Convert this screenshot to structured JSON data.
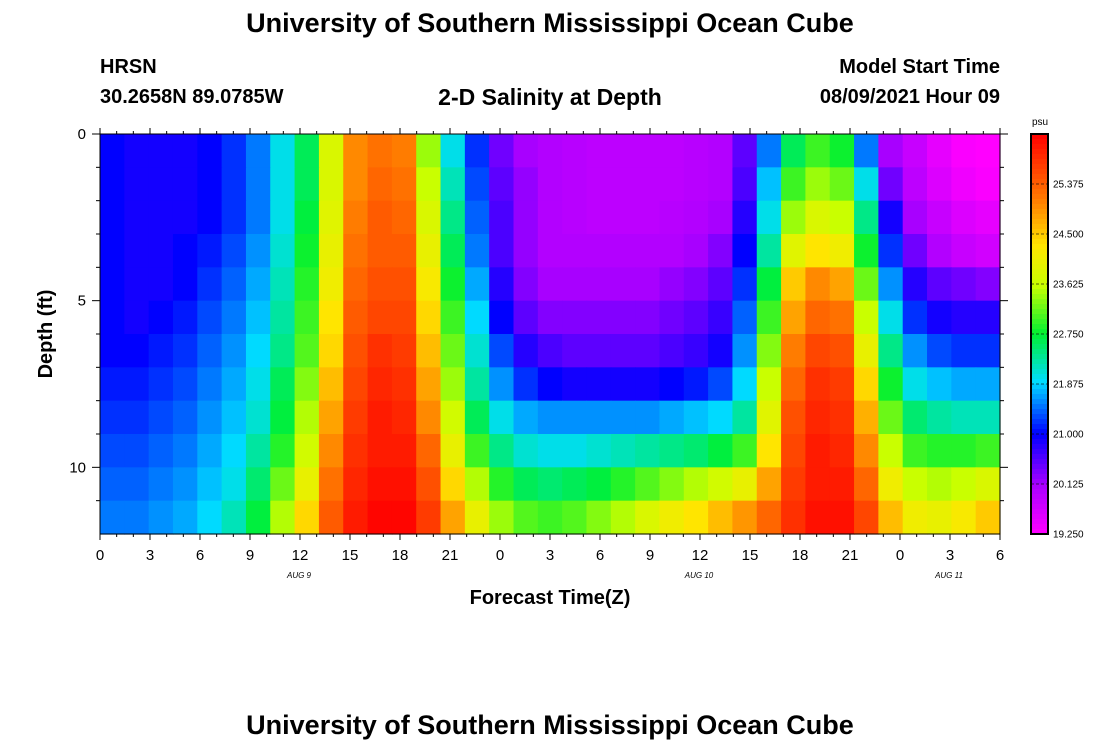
{
  "page": {
    "title_top": "University of Southern Mississippi Ocean Cube",
    "title_bottom": "University of Southern Mississippi Ocean Cube",
    "station": "HRSN",
    "coords": "30.2658N  89.0785W",
    "plot_title": "2-D Salinity at Depth",
    "model_start_label": "Model Start Time",
    "model_start_value": "08/09/2021 Hour 09"
  },
  "chart_data": {
    "type": "heatmap",
    "title": "2-D Salinity at Depth",
    "xlabel": "Forecast Time(Z)",
    "ylabel": "Depth (ft)",
    "x_ticks": [
      "0",
      "3",
      "6",
      "9",
      "12",
      "15",
      "18",
      "21",
      "0",
      "3",
      "6",
      "9",
      "12",
      "15",
      "18",
      "21",
      "0",
      "3",
      "6"
    ],
    "x_range_hours": [
      0,
      54
    ],
    "date_labels": [
      {
        "hour": 12,
        "text": "AUG 9"
      },
      {
        "hour": 36,
        "text": "AUG 10"
      },
      {
        "hour": 51,
        "text": "AUG 11"
      }
    ],
    "y_ticks": [
      "0",
      "5",
      "10"
    ],
    "y_range_ft": [
      0,
      12
    ],
    "colorbar": {
      "unit": "psu",
      "min": 19.25,
      "max": 26.25,
      "ticks": [
        "25.375",
        "24.500",
        "23.625",
        "22.750",
        "21.875",
        "21.000",
        "20.125",
        "19.250"
      ]
    },
    "depth_levels_ft": [
      0.5,
      1.5,
      2.5,
      3.5,
      4.5,
      5.5,
      6.5,
      7.5,
      8.5,
      9.5,
      10.5,
      11.5
    ],
    "salinity_psu_by_depth": [
      [
        21.0,
        20.9,
        20.9,
        20.9,
        21.0,
        21.2,
        21.5,
        22.0,
        22.6,
        23.8,
        25.0,
        25.2,
        25.1,
        23.4,
        22.0,
        21.2,
        20.4,
        20.1,
        20.0,
        19.95,
        19.9,
        19.9,
        19.9,
        19.9,
        19.95,
        20.0,
        20.5,
        21.5,
        22.6,
        23.0,
        22.8,
        21.5,
        20.1,
        19.8,
        19.5,
        19.3,
        19.25
      ],
      [
        21.0,
        20.9,
        20.9,
        20.9,
        21.0,
        21.2,
        21.5,
        22.0,
        22.6,
        23.8,
        25.0,
        25.3,
        25.2,
        23.6,
        22.2,
        21.3,
        20.5,
        20.2,
        20.0,
        19.95,
        19.9,
        19.9,
        19.9,
        19.9,
        19.95,
        20.0,
        20.6,
        21.8,
        23.0,
        23.4,
        23.2,
        22.0,
        20.4,
        19.9,
        19.6,
        19.4,
        19.3
      ],
      [
        21.0,
        20.9,
        20.9,
        20.9,
        21.0,
        21.2,
        21.5,
        22.0,
        22.7,
        23.9,
        25.1,
        25.4,
        25.3,
        23.8,
        22.4,
        21.4,
        20.6,
        20.2,
        20.0,
        19.95,
        19.9,
        19.9,
        19.9,
        19.95,
        20.0,
        20.1,
        20.8,
        22.0,
        23.4,
        23.8,
        23.6,
        22.4,
        20.9,
        20.1,
        19.8,
        19.6,
        19.5
      ],
      [
        21.0,
        20.9,
        20.9,
        21.0,
        21.1,
        21.3,
        21.6,
        22.1,
        22.8,
        24.0,
        25.2,
        25.4,
        25.4,
        24.0,
        22.6,
        21.5,
        20.6,
        20.2,
        20.0,
        20.0,
        20.0,
        20.0,
        20.0,
        20.0,
        20.1,
        20.3,
        21.0,
        22.3,
        23.9,
        24.3,
        24.1,
        22.8,
        21.2,
        20.4,
        20.0,
        19.8,
        19.7
      ],
      [
        21.0,
        20.9,
        20.9,
        21.0,
        21.2,
        21.4,
        21.7,
        22.2,
        22.9,
        24.1,
        25.3,
        25.5,
        25.5,
        24.2,
        22.8,
        21.7,
        20.8,
        20.3,
        20.1,
        20.1,
        20.1,
        20.1,
        20.1,
        20.2,
        20.3,
        20.5,
        21.2,
        22.7,
        24.5,
        25.0,
        24.8,
        23.2,
        21.6,
        20.8,
        20.5,
        20.4,
        20.3
      ],
      [
        21.0,
        20.9,
        21.0,
        21.1,
        21.3,
        21.5,
        21.8,
        22.3,
        23.0,
        24.3,
        25.4,
        25.6,
        25.6,
        24.4,
        23.0,
        21.9,
        21.0,
        20.5,
        20.3,
        20.3,
        20.3,
        20.3,
        20.3,
        20.4,
        20.5,
        20.7,
        21.4,
        23.0,
        24.8,
        25.3,
        25.2,
        23.6,
        22.0,
        21.2,
        20.9,
        20.8,
        20.8
      ],
      [
        21.0,
        21.0,
        21.1,
        21.2,
        21.4,
        21.6,
        21.9,
        22.4,
        23.1,
        24.4,
        25.5,
        25.8,
        25.7,
        24.6,
        23.2,
        22.1,
        21.3,
        20.8,
        20.6,
        20.5,
        20.5,
        20.5,
        20.5,
        20.6,
        20.7,
        20.9,
        21.6,
        23.3,
        25.1,
        25.6,
        25.5,
        24.0,
        22.4,
        21.6,
        21.3,
        21.2,
        21.2
      ],
      [
        21.1,
        21.1,
        21.2,
        21.3,
        21.5,
        21.7,
        22.0,
        22.6,
        23.3,
        24.6,
        25.6,
        25.9,
        25.8,
        24.8,
        23.4,
        22.3,
        21.6,
        21.2,
        21.0,
        20.9,
        20.9,
        20.9,
        20.9,
        21.0,
        21.1,
        21.3,
        21.9,
        23.6,
        25.3,
        25.8,
        25.7,
        24.4,
        22.8,
        22.0,
        21.8,
        21.7,
        21.7
      ],
      [
        21.2,
        21.2,
        21.3,
        21.4,
        21.6,
        21.8,
        22.1,
        22.7,
        23.5,
        24.8,
        25.7,
        26.0,
        25.9,
        25.0,
        23.7,
        22.6,
        22.0,
        21.7,
        21.6,
        21.6,
        21.6,
        21.6,
        21.6,
        21.7,
        21.8,
        21.9,
        22.3,
        23.9,
        25.5,
        25.9,
        25.8,
        24.7,
        23.2,
        22.5,
        22.3,
        22.2,
        22.2
      ],
      [
        21.3,
        21.3,
        21.4,
        21.5,
        21.7,
        21.9,
        22.3,
        22.9,
        23.7,
        25.0,
        25.8,
        26.0,
        26.0,
        25.3,
        24.0,
        23.0,
        22.4,
        22.1,
        22.0,
        22.0,
        22.1,
        22.2,
        22.3,
        22.4,
        22.5,
        22.7,
        23.0,
        24.3,
        25.6,
        26.0,
        25.9,
        25.0,
        23.6,
        23.0,
        22.9,
        22.9,
        23.0
      ],
      [
        21.4,
        21.4,
        21.5,
        21.6,
        21.8,
        22.0,
        22.5,
        23.2,
        24.0,
        25.2,
        25.9,
        26.1,
        26.1,
        25.5,
        24.4,
        23.5,
        22.9,
        22.6,
        22.5,
        22.6,
        22.7,
        22.9,
        23.1,
        23.3,
        23.5,
        23.7,
        24.0,
        24.8,
        25.7,
        26.0,
        26.0,
        25.3,
        24.1,
        23.6,
        23.5,
        23.6,
        23.8
      ],
      [
        21.5,
        21.5,
        21.6,
        21.7,
        21.9,
        22.2,
        22.7,
        23.5,
        24.4,
        25.4,
        26.0,
        26.2,
        26.2,
        25.7,
        24.8,
        24.0,
        23.4,
        23.1,
        23.0,
        23.1,
        23.3,
        23.5,
        23.8,
        24.1,
        24.3,
        24.6,
        24.9,
        25.3,
        25.8,
        26.1,
        26.1,
        25.6,
        24.6,
        24.1,
        24.0,
        24.2,
        24.5
      ]
    ]
  }
}
